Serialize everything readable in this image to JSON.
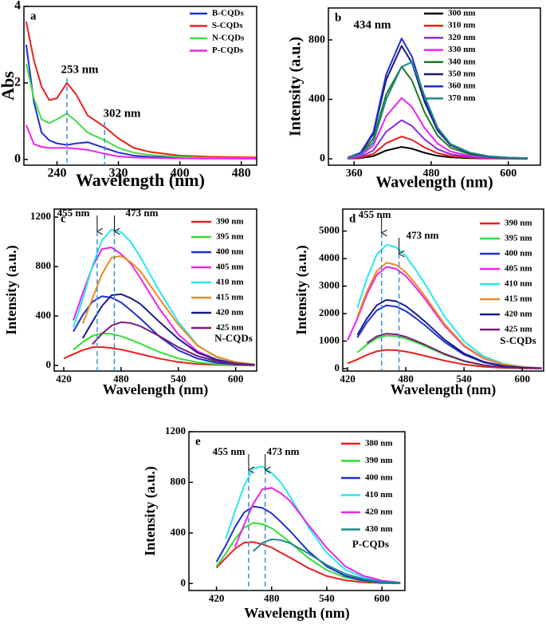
{
  "chart_data": [
    {
      "type": "line",
      "panel": "a",
      "xlabel": "Wavelength (nm)",
      "ylabel": "Abs",
      "x": [
        200,
        210,
        220,
        230,
        240,
        253,
        265,
        280,
        302,
        320,
        340,
        360,
        400,
        440,
        500
      ],
      "series": [
        {
          "name": "B-CQDs",
          "color": "#1f2fd6",
          "values": [
            3.0,
            1.5,
            0.7,
            0.5,
            0.42,
            0.38,
            0.42,
            0.45,
            0.3,
            0.18,
            0.1,
            0.07,
            0.05,
            0.03,
            0.02
          ]
        },
        {
          "name": "S-CQDs",
          "color": "#e8201c",
          "values": [
            3.6,
            2.6,
            1.9,
            1.55,
            1.6,
            2.0,
            1.7,
            1.15,
            0.85,
            0.55,
            0.3,
            0.2,
            0.1,
            0.07,
            0.05
          ]
        },
        {
          "name": "N-CQDs",
          "color": "#44dd44",
          "values": [
            2.5,
            1.6,
            1.05,
            0.95,
            1.05,
            1.2,
            1.0,
            0.7,
            0.5,
            0.3,
            0.18,
            0.12,
            0.07,
            0.04,
            0.03
          ]
        },
        {
          "name": "P-CQDs",
          "color": "#ee22ee",
          "values": [
            0.9,
            0.4,
            0.33,
            0.3,
            0.3,
            0.3,
            0.28,
            0.25,
            0.15,
            0.08,
            0.05,
            0.04,
            0.03,
            0.02,
            0.02
          ]
        }
      ],
      "annotations": [
        {
          "text": "253 nm",
          "x": 253
        },
        {
          "text": "302 nm",
          "x": 302
        }
      ],
      "xlim": [
        197,
        500
      ],
      "xticks": [
        240,
        320,
        400,
        480
      ],
      "ylim": [
        -0.15,
        4
      ],
      "yticks": [
        0,
        2,
        4
      ],
      "legend": "upper right"
    },
    {
      "type": "line",
      "panel": "b",
      "xlabel": "Wavelength (nm)",
      "ylabel": "Intensity (a.u.)",
      "x": [
        350,
        370,
        390,
        410,
        434,
        450,
        470,
        490,
        510,
        540,
        570,
        600,
        630
      ],
      "series": [
        {
          "name": "300 nm",
          "color": "#000000",
          "values": [
            1,
            4,
            18,
            56,
            80,
            68,
            40,
            20,
            10,
            4,
            2,
            1,
            0
          ]
        },
        {
          "name": "310 nm",
          "color": "#e8201c",
          "values": [
            2,
            8,
            33,
            105,
            150,
            128,
            75,
            38,
            18,
            8,
            3,
            2,
            1
          ]
        },
        {
          "name": "320 nm",
          "color": "#8a2be2",
          "values": [
            3,
            13,
            57,
            182,
            260,
            221,
            130,
            65,
            31,
            13,
            5,
            3,
            1
          ]
        },
        {
          "name": "330 nm",
          "color": "#ee22ee",
          "values": [
            4,
            21,
            90,
            287,
            410,
            349,
            205,
            103,
            49,
            21,
            8,
            4,
            2
          ]
        },
        {
          "name": "340 nm",
          "color": "#1e7b1e",
          "values": [
            6,
            31,
            136,
            434,
            620,
            527,
            310,
            155,
            74,
            31,
            12,
            6,
            3
          ]
        },
        {
          "name": "350 nm",
          "color": "#1a1a6e",
          "values": [
            8,
            38,
            167,
            532,
            760,
            646,
            380,
            190,
            91,
            38,
            15,
            8,
            4
          ]
        },
        {
          "name": "360 nm",
          "color": "#1f2fd6",
          "values": [
            8,
            41,
            178,
            567,
            810,
            689,
            405,
            203,
            97,
            41,
            16,
            8,
            4
          ]
        },
        {
          "name": "370 nm",
          "color": "#1e8a8a",
          "values": [
            7,
            30,
            110,
            400,
            620,
            650,
            420,
            210,
            100,
            42,
            17,
            8,
            4
          ]
        }
      ],
      "annotations": [
        {
          "text": "434 nm"
        }
      ],
      "xlim": [
        320,
        650
      ],
      "xticks": [
        360,
        480,
        600
      ],
      "ylim": [
        -43,
        1015
      ],
      "yticks": [
        0,
        400,
        800
      ],
      "legend": "upper right"
    },
    {
      "type": "line",
      "panel": "c",
      "xlabel": "Wavelength (nm)",
      "ylabel": "Intensity (a.u.)",
      "sample_label": "N-CQDs",
      "x": [
        420,
        430,
        440,
        450,
        460,
        470,
        480,
        490,
        500,
        520,
        540,
        560,
        580,
        600,
        620
      ],
      "series": [
        {
          "name": "390 nm",
          "color": "#e8201c",
          "values": [
            57,
            92,
            125,
            147,
            149,
            141,
            129,
            111,
            93,
            56,
            27,
            12,
            5,
            2,
            1
          ]
        },
        {
          "name": "395 nm",
          "color": "#33dd33",
          "values": [
            null,
            127,
            190,
            239,
            260,
            255,
            237,
            208,
            177,
            109,
            57,
            26,
            10,
            4,
            1
          ]
        },
        {
          "name": "400 nm",
          "color": "#1f2fd6",
          "values": [
            null,
            274,
            409,
            515,
            560,
            549,
            510,
            448,
            381,
            235,
            123,
            56,
            22,
            8,
            3
          ]
        },
        {
          "name": "405 nm",
          "color": "#ee22ee",
          "values": [
            null,
            365,
            586,
            797,
            941,
            955,
            902,
            826,
            710,
            461,
            250,
            115,
            48,
            19,
            6
          ]
        },
        {
          "name": "410 nm",
          "color": "#22e8f0",
          "values": [
            null,
            308,
            539,
            803,
            1012,
            1100,
            1078,
            1001,
            880,
            605,
            352,
            165,
            66,
            28,
            9
          ]
        },
        {
          "name": "415 nm",
          "color": "#f08a1a",
          "values": [
            null,
            null,
            338,
            543,
            739,
            872,
            886,
            837,
            765,
            543,
            329,
            160,
            71,
            27,
            9
          ]
        },
        {
          "name": "420 nm",
          "color": "#1a1a8e",
          "values": [
            null,
            null,
            220,
            354,
            481,
            568,
            577,
            545,
            499,
            354,
            215,
            104,
            46,
            17,
            6
          ]
        },
        {
          "name": "425 nm",
          "color": "#7a1a7a",
          "values": [
            null,
            null,
            null,
            172,
            256,
            322,
            350,
            343,
            319,
            238,
            147,
            77,
            35,
            14,
            5
          ]
        }
      ],
      "annotations": [
        {
          "text": "455 nm",
          "x": 455
        },
        {
          "text": "473 nm",
          "x": 473
        }
      ],
      "xlim": [
        410,
        622
      ],
      "xticks": [
        420,
        480,
        540,
        600
      ],
      "ylim": [
        -45,
        1265
      ],
      "yticks": [
        0,
        400,
        800,
        1200
      ],
      "legend": "upper right"
    },
    {
      "type": "line",
      "panel": "d",
      "xlabel": "Wavelength (nm)",
      "ylabel": "Intensity (a.u.)",
      "sample_label": "S-CQDs",
      "x": [
        420,
        430,
        440,
        450,
        460,
        470,
        480,
        490,
        500,
        520,
        540,
        560,
        580,
        600,
        620
      ],
      "series": [
        {
          "name": "390 nm",
          "color": "#e8201c",
          "values": [
            190,
            333,
            496,
            626,
            680,
            666,
            619,
            544,
            462,
            286,
            150,
            68,
            27,
            10,
            3
          ]
        },
        {
          "name": "395 nm",
          "color": "#33dd33",
          "values": [
            null,
            588,
            876,
            1104,
            1200,
            1176,
            1092,
            960,
            816,
            504,
            264,
            120,
            48,
            18,
            6
          ]
        },
        {
          "name": "400 nm",
          "color": "#1f2fd6",
          "values": [
            null,
            1127,
            1679,
            2116,
            2300,
            2254,
            2093,
            1840,
            1564,
            966,
            506,
            230,
            92,
            35,
            12
          ]
        },
        {
          "name": "405 nm",
          "color": "#ee22ee",
          "values": [
            1036,
            1813,
            2701,
            3404,
            3700,
            3626,
            3367,
            2960,
            2516,
            1554,
            814,
            370,
            148,
            56,
            19
          ]
        },
        {
          "name": "410 nm",
          "color": "#22e8f0",
          "values": [
            null,
            2205,
            3285,
            4140,
            4500,
            4410,
            4095,
            3600,
            3060,
            1890,
            990,
            450,
            180,
            68,
            23
          ]
        },
        {
          "name": "415 nm",
          "color": "#f08a1a",
          "values": [
            null,
            1887,
            2811,
            3542,
            3850,
            3773,
            3504,
            3080,
            2618,
            1617,
            847,
            385,
            154,
            58,
            19
          ]
        },
        {
          "name": "420 nm",
          "color": "#1a1a8e",
          "values": [
            null,
            1225,
            1825,
            2300,
            2500,
            2450,
            2275,
            2000,
            1700,
            1050,
            550,
            250,
            100,
            38,
            13
          ]
        },
        {
          "name": "425 nm",
          "color": "#7a1a7a",
          "values": [
            null,
            null,
            927,
            1168,
            1270,
            1245,
            1156,
            1016,
            864,
            533,
            279,
            127,
            51,
            19,
            6
          ]
        }
      ],
      "annotations": [
        {
          "text": "455 nm",
          "x": 455
        },
        {
          "text": "473 nm",
          "x": 473
        }
      ],
      "xlim": [
        415,
        622
      ],
      "xticks": [
        420,
        480,
        540,
        600
      ],
      "ylim": [
        -90,
        5800
      ],
      "yticks": [
        0,
        1000,
        2000,
        3000,
        4000,
        5000
      ],
      "legend": "upper right"
    },
    {
      "type": "line",
      "panel": "e",
      "xlabel": "Wavelength (nm)",
      "ylabel": "Intensity (a.u.)",
      "sample_label": "P-CQDs",
      "x": [
        420,
        430,
        440,
        450,
        460,
        470,
        480,
        490,
        500,
        520,
        540,
        560,
        580,
        600,
        620
      ],
      "series": [
        {
          "name": "380 nm",
          "color": "#e8201c",
          "values": [
            125,
            201,
            274,
            323,
            328,
            310,
            284,
            244,
            205,
            122,
            59,
            26,
            10,
            3,
            1
          ]
        },
        {
          "name": "390 nm",
          "color": "#33dd33",
          "values": [
            134,
            235,
            350,
            442,
            480,
            470,
            437,
            384,
            326,
            202,
            106,
            48,
            19,
            7,
            2
          ]
        },
        {
          "name": "400 nm",
          "color": "#1f2fd6",
          "values": [
            171,
            299,
            445,
            561,
            610,
            598,
            555,
            488,
            415,
            256,
            134,
            61,
            24,
            9,
            3
          ]
        },
        {
          "name": "410 nm",
          "color": "#22e8f0",
          "values": [
            null,
            353,
            567,
            772,
            911,
            925,
            874,
            800,
            688,
            446,
            242,
            112,
            47,
            19,
            6
          ]
        },
        {
          "name": "420 nm",
          "color": "#ee22ee",
          "values": [
            null,
            null,
            289,
            464,
            631,
            745,
            756,
            714,
            654,
            464,
            281,
            137,
            61,
            23,
            8
          ]
        },
        {
          "name": "430 nm",
          "color": "#1e8a8a",
          "values": [
            null,
            null,
            null,
            null,
            256,
            322,
            350,
            343,
            319,
            238,
            147,
            77,
            35,
            14,
            5
          ]
        }
      ],
      "annotations": [
        {
          "text": "455 nm",
          "x": 455
        },
        {
          "text": "473 nm",
          "x": 473
        }
      ],
      "xlim": [
        390,
        625
      ],
      "xticks": [
        420,
        480,
        540,
        600
      ],
      "ylim": [
        -55,
        1200
      ],
      "yticks": [
        0,
        400,
        800,
        1200
      ],
      "legend": "upper right"
    }
  ]
}
